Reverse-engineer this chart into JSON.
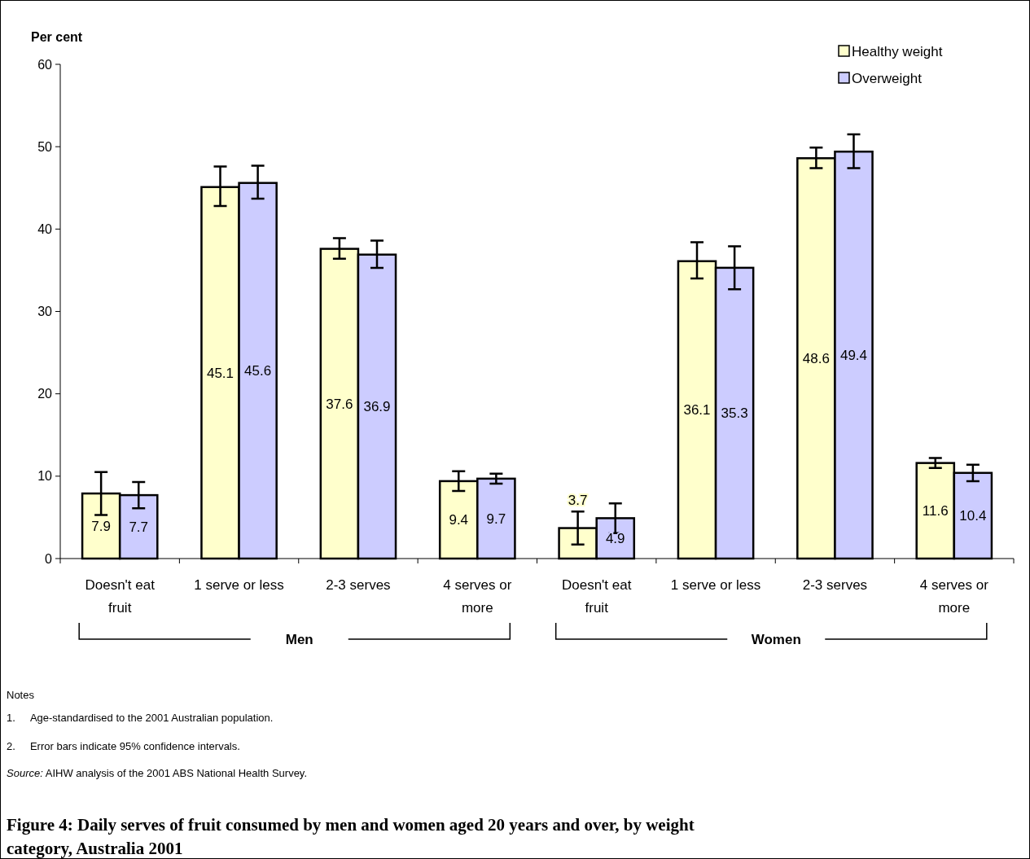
{
  "chart_data": {
    "type": "bar",
    "title": "Figure 4: Daily serves of fruit consumed by men and women aged 20 years and over, by weight category, Australia 2001",
    "ylabel": "Per cent",
    "categories": [
      "Doesn't eat fruit",
      "1 serve or less",
      "2-3 serves",
      "4 serves or more",
      "Doesn't eat fruit",
      "1 serve or less",
      "2-3 serves",
      "4 serves or more"
    ],
    "series": [
      {
        "name": "Healthy weight",
        "color": "#ffffcc",
        "values": [
          7.9,
          45.1,
          37.6,
          9.4,
          3.7,
          36.1,
          48.6,
          11.6
        ],
        "errors": [
          [
            5.3,
            10.5
          ],
          [
            42.8,
            47.6
          ],
          [
            36.4,
            38.9
          ],
          [
            8.2,
            10.6
          ],
          [
            1.7,
            5.7
          ],
          [
            34.0,
            38.4
          ],
          [
            47.4,
            49.9
          ],
          [
            11.0,
            12.2
          ]
        ]
      },
      {
        "name": "Overweight",
        "color": "#ccccff",
        "values": [
          7.7,
          45.6,
          36.9,
          9.7,
          4.9,
          35.3,
          49.4,
          10.4
        ],
        "errors": [
          [
            6.1,
            9.3
          ],
          [
            43.7,
            47.7
          ],
          [
            35.3,
            38.6
          ],
          [
            9.1,
            10.3
          ],
          [
            3.1,
            6.7
          ],
          [
            32.7,
            37.9
          ],
          [
            47.4,
            51.5
          ],
          [
            9.4,
            11.4
          ]
        ]
      }
    ],
    "ylim": [
      0,
      60
    ],
    "yticks": [
      0,
      10,
      20,
      30,
      40,
      50,
      60
    ],
    "grid": false,
    "legend": "top right",
    "data_labels": true,
    "annotations": [
      "Men",
      "Women",
      "Notes",
      "1.     Age-standardised to the 2001 Australian population.",
      "2.     Error bars indicate 95% confidence intervals.",
      "Source: AIHW analysis of the 2001 ABS National Health Survey."
    ]
  }
}
